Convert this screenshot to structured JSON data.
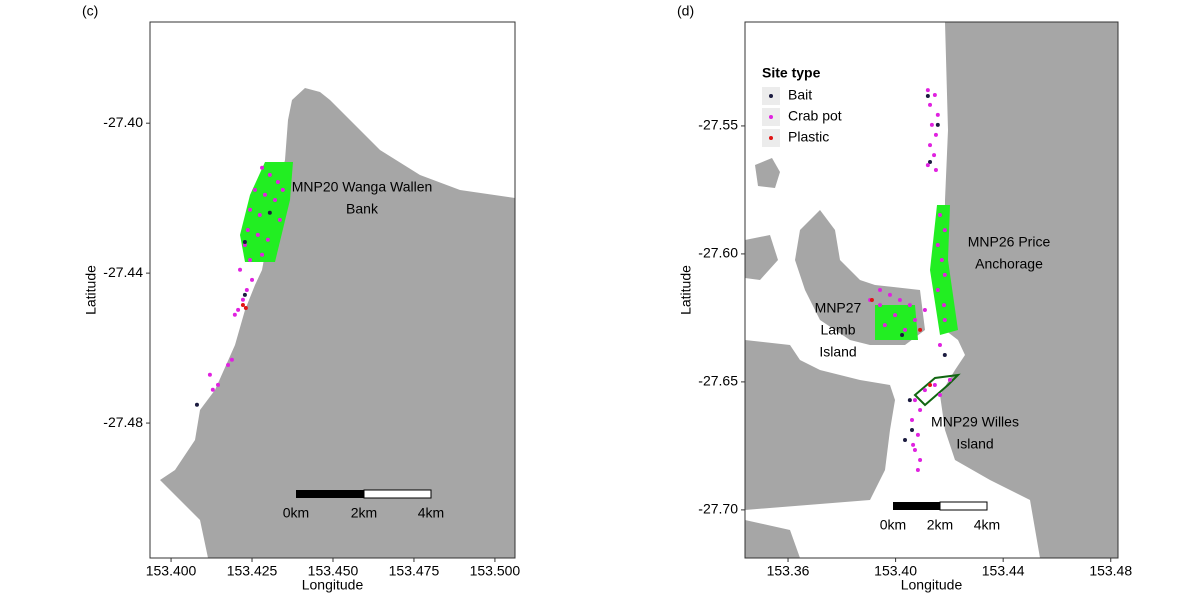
{
  "chart_data": [
    {
      "type": "scatter",
      "panel_label": "(c)",
      "xlabel": "Longitude",
      "ylabel": "Latitude",
      "xlim": [
        153.3935,
        153.5062
      ],
      "ylim": [
        -27.516,
        -27.373
      ],
      "xticks": [
        {
          "value": 153.4,
          "label": "153.400"
        },
        153.425,
        {
          "value": 153.45,
          "label": "153.450"
        },
        153.475,
        {
          "value": 153.5,
          "label": "153.500"
        }
      ],
      "yticks": [
        {
          "value": -27.4,
          "label": "-27.40"
        },
        -27.44,
        -27.48
      ],
      "annotations": [
        {
          "lines": [
            "MNP20 Wanga Wallen",
            "Bank"
          ]
        }
      ],
      "scale_labels": [
        "0km",
        "2km",
        "4km"
      ],
      "series": [
        {
          "color": "#e022e0",
          "x": [
            153.4281,
            153.4305,
            153.433,
            153.4259,
            153.429,
            153.4321,
            153.4345,
            153.4244,
            153.4274,
            153.4336,
            153.4237,
            153.4268,
            153.4299,
            153.4228,
            153.4281,
            153.4244,
            153.4213,
            153.425,
            153.4234,
            153.4222,
            153.4207,
            153.4197,
            153.4188,
            153.4176,
            153.4145,
            153.4129,
            153.412
          ],
          "y": [
            -27.4119,
            -27.4138,
            -27.4157,
            -27.4178,
            -27.4191,
            -27.4205,
            -27.4178,
            -27.4231,
            -27.4245,
            -27.4258,
            -27.4285,
            -27.4298,
            -27.4311,
            -27.4325,
            -27.4351,
            -27.4365,
            -27.4391,
            -27.4418,
            -27.4445,
            -27.4471,
            -27.4498,
            -27.4511,
            -27.4631,
            -27.4645,
            -27.4698,
            -27.4711,
            -27.4671
          ]
        },
        {
          "color": "#1c1c40",
          "x": [
            153.4228,
            153.4228,
            153.408,
            153.4305
          ],
          "y": [
            -27.4317,
            -27.4458,
            -27.4751,
            -27.4239
          ]
        },
        {
          "color": "#e01414",
          "x": [
            153.4222,
            153.4231
          ],
          "y": [
            -27.4485,
            -27.4493
          ]
        }
      ]
    },
    {
      "type": "scatter",
      "panel_label": "(d)",
      "xlabel": "Longitude",
      "ylabel": "Latitude",
      "xlim": [
        153.344,
        153.4827
      ],
      "ylim": [
        -27.7188,
        -27.5094
      ],
      "xticks": [
        153.36,
        {
          "value": 153.4,
          "label": "153.40"
        },
        153.44,
        153.48
      ],
      "yticks": [
        -27.55,
        {
          "value": -27.6,
          "label": "-27.60"
        },
        -27.65,
        {
          "value": -27.7,
          "label": "-27.70"
        }
      ],
      "annotations": [
        {
          "lines": [
            "MNP26 Price",
            "Anchorage"
          ]
        },
        {
          "lines": [
            "MNP27",
            "Lamb",
            "Island"
          ]
        },
        {
          "lines": [
            "MNP29 Willes",
            "Island"
          ]
        }
      ],
      "scale_labels": [
        "0km",
        "2km",
        "4km"
      ],
      "legend_title": "Site type",
      "legend": "top-left",
      "series": [
        {
          "name": "Bait",
          "color": "#1c1c40",
          "x": [
            153.412,
            153.4157,
            153.4128,
            153.4024,
            153.4183,
            153.4053,
            153.4035,
            153.4061
          ],
          "y": [
            -27.5383,
            -27.5496,
            -27.5641,
            -27.6317,
            -27.6395,
            -27.6571,
            -27.6727,
            -27.6688
          ]
        },
        {
          "name": "Crab pot",
          "color": "#e022e0",
          "x": [
            153.412,
            153.4146,
            153.4128,
            153.4157,
            153.4135,
            153.415,
            153.4128,
            153.4143,
            153.412,
            153.415,
            153.4165,
            153.4183,
            153.4157,
            153.4172,
            153.4183,
            153.4157,
            153.418,
            153.3942,
            153.3979,
            153.4016,
            153.4053,
            153.3998,
            153.396,
            153.4035,
            153.4072,
            153.3942,
            153.3905,
            153.4109,
            153.4165,
            153.4183,
            153.4072,
            153.4109,
            153.4146,
            153.4091,
            153.4061,
            153.4083,
            153.4072,
            153.4091,
            153.4083,
            153.4065,
            153.4202,
            153.4165
          ],
          "y": [
            -27.536,
            -27.5379,
            -27.5418,
            -27.5457,
            -27.5496,
            -27.5535,
            -27.5575,
            -27.5614,
            -27.5653,
            -27.5672,
            -27.5848,
            -27.5907,
            -27.5965,
            -27.6024,
            -27.6082,
            -27.6141,
            -27.62,
            -27.6141,
            -27.616,
            -27.618,
            -27.62,
            -27.6239,
            -27.6278,
            -27.6297,
            -27.6258,
            -27.62,
            -27.618,
            -27.6219,
            -27.6356,
            -27.6258,
            -27.6571,
            -27.6532,
            -27.6512,
            -27.661,
            -27.6649,
            -27.6707,
            -27.6766,
            -27.6805,
            -27.6844,
            -27.6746,
            -27.6492,
            -27.6551
          ]
        },
        {
          "name": "Plastic",
          "color": "#e01414",
          "x": [
            153.3912,
            153.4091,
            153.4128
          ],
          "y": [
            -27.618,
            -27.6297,
            -27.6512
          ]
        }
      ]
    }
  ]
}
